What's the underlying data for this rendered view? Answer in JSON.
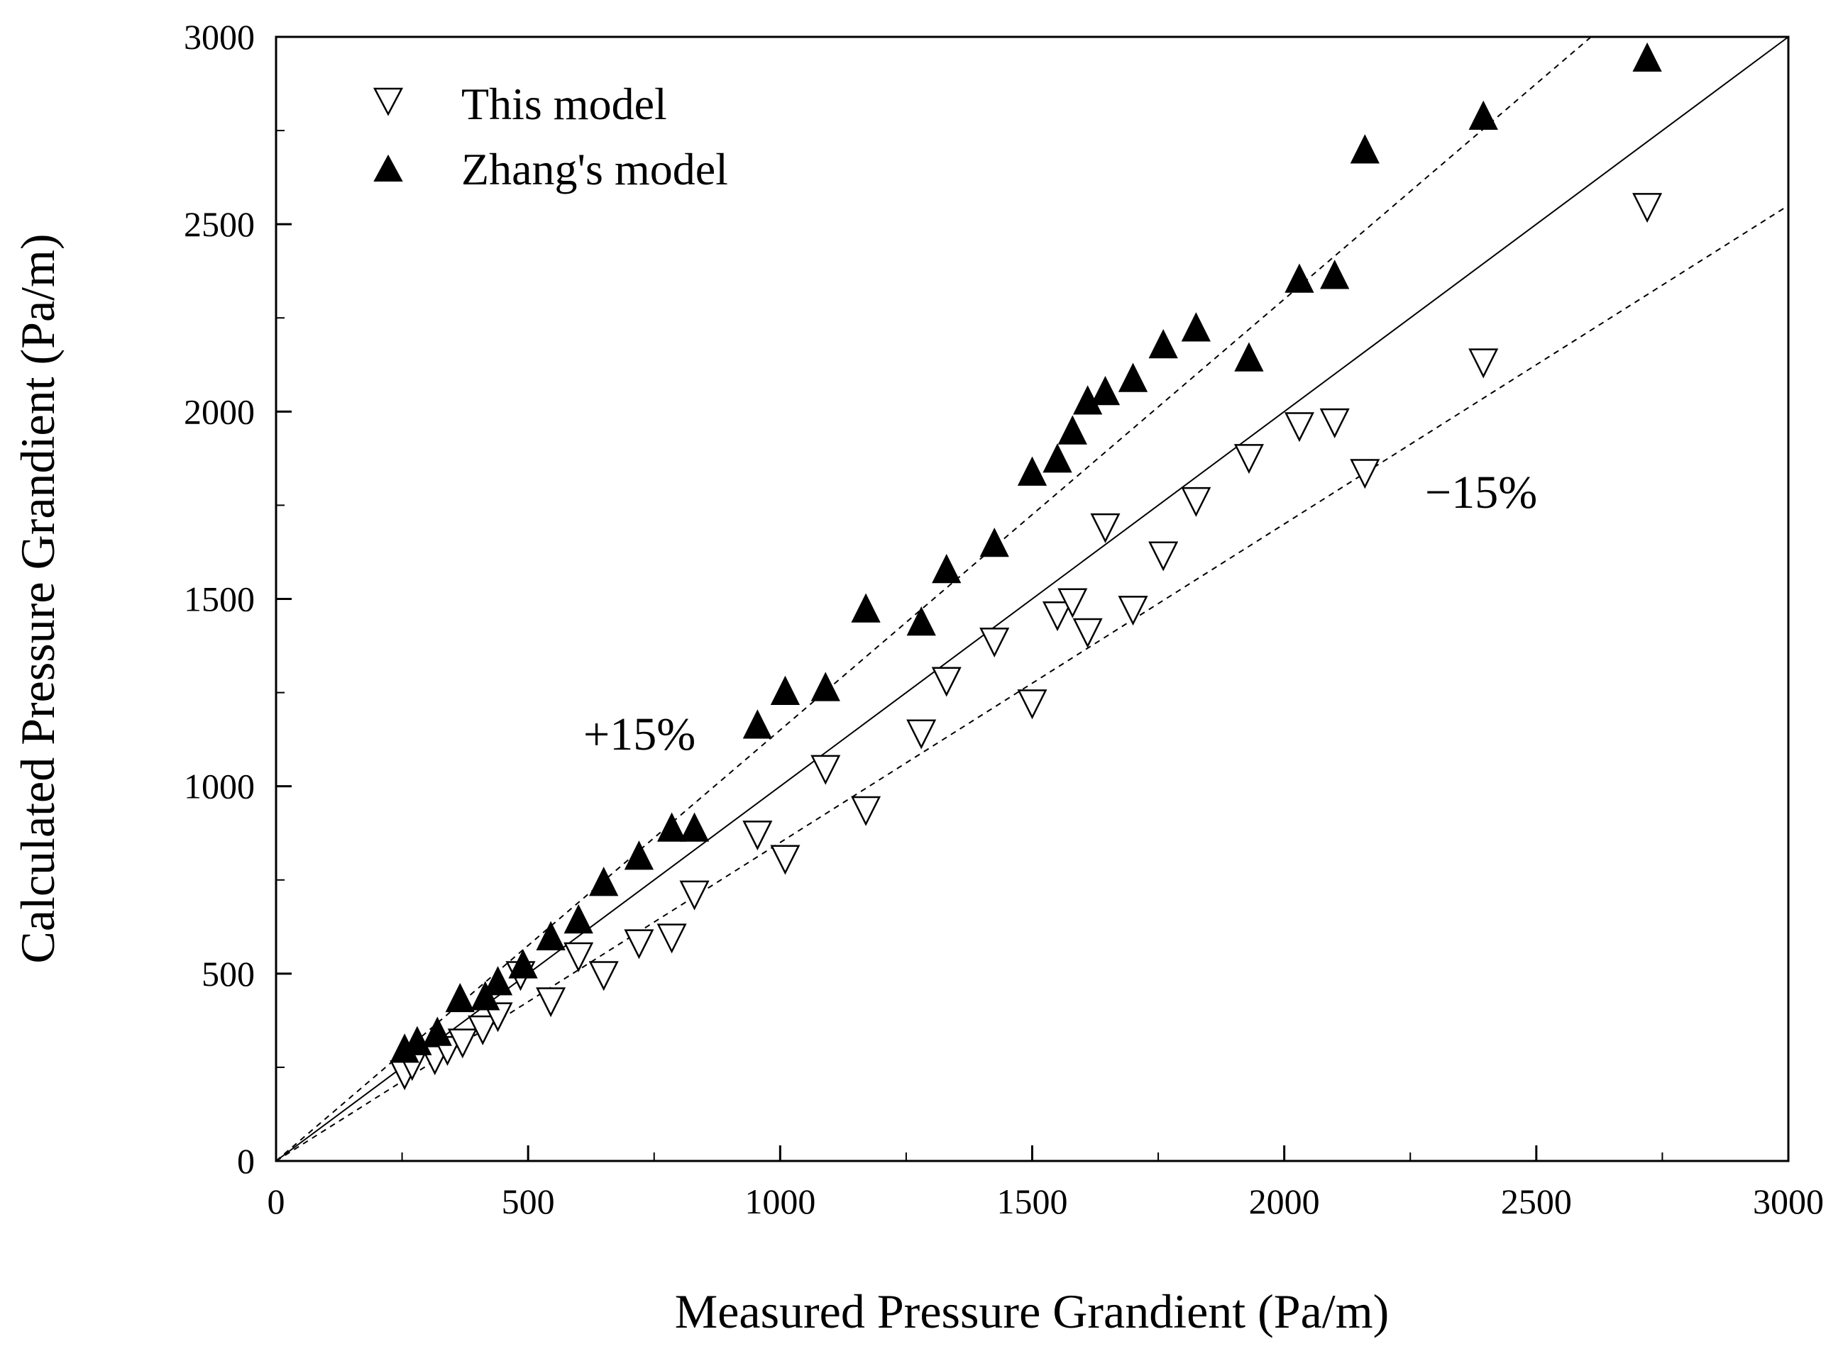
{
  "chart_data": {
    "type": "scatter",
    "title": "",
    "xlabel": "Measured Pressure Grandient (Pa/m)",
    "ylabel": "Calculated Pressure Grandient (Pa/m)",
    "xlim": [
      0,
      3000
    ],
    "ylim": [
      0,
      3000
    ],
    "x_ticks": [
      0,
      500,
      1000,
      1500,
      2000,
      2500,
      3000
    ],
    "y_ticks": [
      0,
      500,
      1000,
      1500,
      2000,
      2500,
      3000
    ],
    "x_tick_labels": [
      "0",
      "500",
      "1000",
      "1500",
      "2000",
      "2500",
      "3000"
    ],
    "y_tick_labels": [
      "0",
      "500",
      "1000",
      "1500",
      "2000",
      "2500",
      "3000"
    ],
    "grid": false,
    "legend_position": "top-left",
    "series": [
      {
        "name": "This model",
        "marker": "open-down-triangle",
        "points": [
          [
            255,
            230
          ],
          [
            270,
            255
          ],
          [
            315,
            270
          ],
          [
            340,
            295
          ],
          [
            370,
            315
          ],
          [
            410,
            350
          ],
          [
            440,
            385
          ],
          [
            485,
            495
          ],
          [
            545,
            425
          ],
          [
            600,
            545
          ],
          [
            650,
            495
          ],
          [
            720,
            580
          ],
          [
            785,
            595
          ],
          [
            830,
            710
          ],
          [
            955,
            870
          ],
          [
            1010,
            805
          ],
          [
            1090,
            1045
          ],
          [
            1170,
            935
          ],
          [
            1280,
            1140
          ],
          [
            1330,
            1280
          ],
          [
            1425,
            1385
          ],
          [
            1500,
            1220
          ],
          [
            1550,
            1455
          ],
          [
            1580,
            1490
          ],
          [
            1610,
            1410
          ],
          [
            1645,
            1690
          ],
          [
            1700,
            1470
          ],
          [
            1760,
            1615
          ],
          [
            1825,
            1760
          ],
          [
            1930,
            1875
          ],
          [
            2030,
            1960
          ],
          [
            2100,
            1970
          ],
          [
            2160,
            1835
          ],
          [
            2395,
            2130
          ],
          [
            2720,
            2545
          ]
        ]
      },
      {
        "name": "Zhang's model",
        "marker": "filled-up-triangle",
        "points": [
          [
            255,
            300
          ],
          [
            280,
            320
          ],
          [
            320,
            345
          ],
          [
            365,
            435
          ],
          [
            415,
            440
          ],
          [
            440,
            480
          ],
          [
            490,
            525
          ],
          [
            545,
            600
          ],
          [
            600,
            645
          ],
          [
            650,
            745
          ],
          [
            720,
            815
          ],
          [
            785,
            890
          ],
          [
            830,
            890
          ],
          [
            955,
            1165
          ],
          [
            1010,
            1255
          ],
          [
            1090,
            1265
          ],
          [
            1170,
            1475
          ],
          [
            1280,
            1440
          ],
          [
            1330,
            1580
          ],
          [
            1425,
            1650
          ],
          [
            1500,
            1840
          ],
          [
            1550,
            1875
          ],
          [
            1580,
            1950
          ],
          [
            1610,
            2030
          ],
          [
            1645,
            2055
          ],
          [
            1700,
            2090
          ],
          [
            1760,
            2180
          ],
          [
            1825,
            2225
          ],
          [
            1930,
            2145
          ],
          [
            2030,
            2355
          ],
          [
            2100,
            2365
          ],
          [
            2160,
            2700
          ],
          [
            2395,
            2790
          ],
          [
            2720,
            2945
          ]
        ]
      }
    ],
    "reference_lines": [
      {
        "name": "y = x",
        "slope": 1.0,
        "style": "solid"
      },
      {
        "name": "+15%",
        "slope": 1.15,
        "style": "dashed"
      },
      {
        "name": "-15%",
        "slope": 0.85,
        "style": "dashed"
      }
    ],
    "annotations": [
      {
        "text": "+15%",
        "x": 720,
        "y": 1130
      },
      {
        "text": "−15%",
        "x": 2280,
        "y": 1780
      }
    ]
  }
}
